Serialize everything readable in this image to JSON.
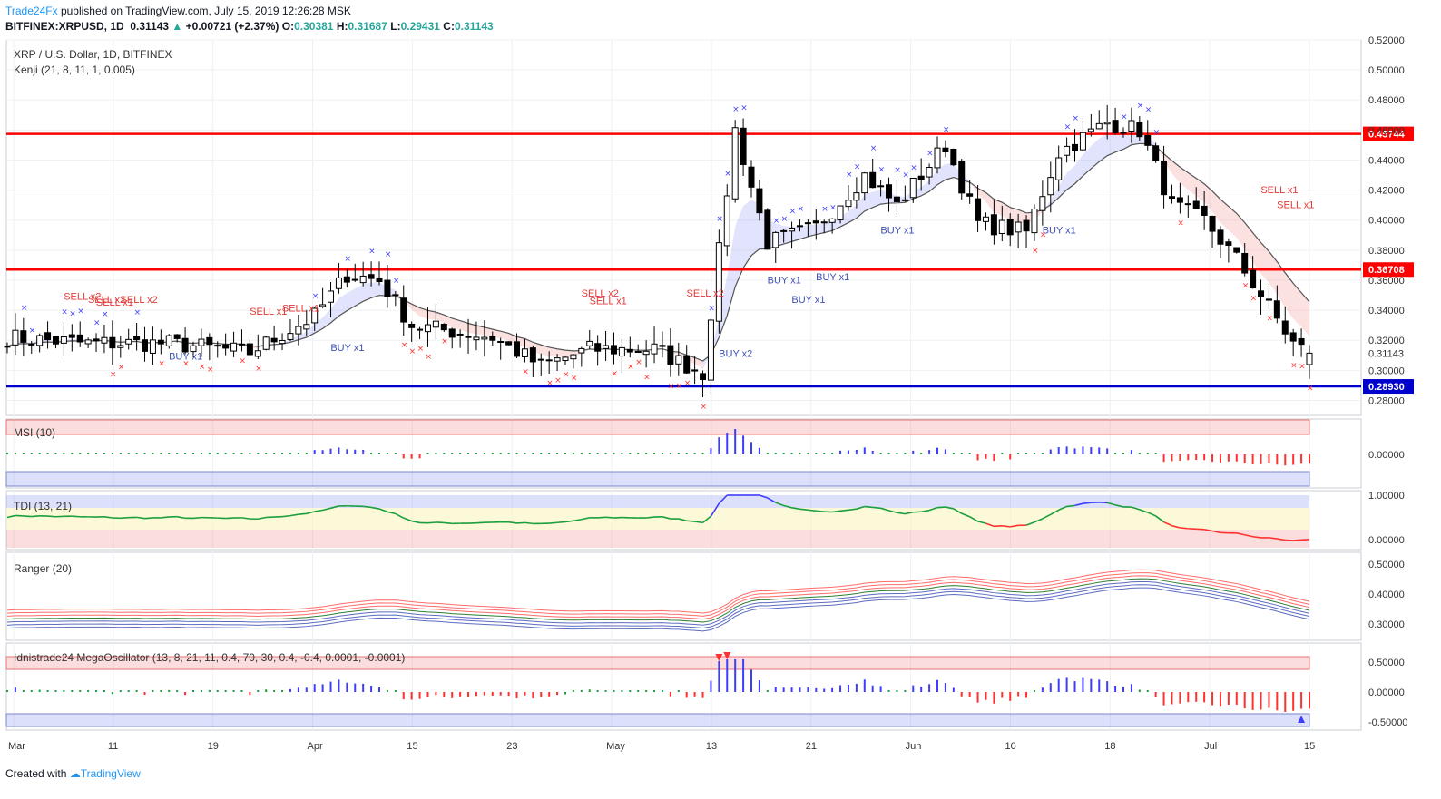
{
  "header": {
    "publisher": "Trade24Fx",
    "published_text": "published on TradingView.com, July 15, 2019 12:26:28 MSK",
    "symbol_line": "BITFINEX:XRPUSD, 1D",
    "last": "0.31143",
    "change": "+0.00721 (+2.37%)",
    "open_label": "O:",
    "open": "0.30381",
    "high_label": "H:",
    "high": "0.31687",
    "low_label": "L:",
    "low": "0.29431",
    "close_label": "C:",
    "close": "0.31143"
  },
  "main_pane": {
    "title": "XRP / U.S. Dollar, 1D, BITFINEX",
    "indicator": "Kenji (21, 8, 11, 1, 0.005)"
  },
  "colors": {
    "up": "#26a69a",
    "red_line": "#ff0000",
    "blue_line": "#0000cc",
    "signal_blue": "#3f51b5",
    "signal_red": "#e53935",
    "grid": "#eef0f3"
  },
  "chart_data": {
    "type": "candlestick",
    "x_labels": [
      "Mar",
      "11",
      "19",
      "Apr",
      "15",
      "23",
      "May",
      "13",
      "21",
      "Jun",
      "10",
      "18",
      "Jul",
      "15"
    ],
    "y_range": [
      0.27,
      0.52
    ],
    "y_ticks": [
      "0.52000",
      "0.50000",
      "0.48000",
      "0.46000",
      "0.44000",
      "0.42000",
      "0.40000",
      "0.38000",
      "0.36000",
      "0.34000",
      "0.32000",
      "0.30000",
      "0.28000"
    ],
    "last_price_label": "0.31143",
    "horizontal_levels": [
      {
        "value": 0.45744,
        "label": "0.45744",
        "color": "red"
      },
      {
        "value": 0.36708,
        "label": "0.36708",
        "color": "red"
      },
      {
        "value": 0.2893,
        "label": "0.28930",
        "color": "blue"
      }
    ],
    "anchors": [
      [
        0,
        0.322
      ],
      [
        10,
        0.318
      ],
      [
        20,
        0.318
      ],
      [
        30,
        0.312
      ],
      [
        38,
        0.336
      ],
      [
        42,
        0.364
      ],
      [
        46,
        0.36
      ],
      [
        50,
        0.33
      ],
      [
        60,
        0.322
      ],
      [
        66,
        0.303
      ],
      [
        72,
        0.314
      ],
      [
        80,
        0.314
      ],
      [
        86,
        0.298
      ],
      [
        90,
        0.46
      ],
      [
        94,
        0.385
      ],
      [
        100,
        0.395
      ],
      [
        106,
        0.43
      ],
      [
        110,
        0.41
      ],
      [
        116,
        0.45
      ],
      [
        120,
        0.398
      ],
      [
        126,
        0.392
      ],
      [
        130,
        0.445
      ],
      [
        136,
        0.465
      ],
      [
        140,
        0.46
      ],
      [
        144,
        0.41
      ],
      [
        148,
        0.4
      ],
      [
        152,
        0.374
      ],
      [
        156,
        0.342
      ],
      [
        159,
        0.318
      ],
      [
        161,
        0.311
      ]
    ],
    "signals": [
      {
        "text": "SELL x2",
        "bar": 9,
        "price": 0.347,
        "side": "sell"
      },
      {
        "text": "SELL x2",
        "bar": 12,
        "price": 0.345,
        "side": "sell"
      },
      {
        "text": "SELL x1",
        "bar": 13,
        "price": 0.343,
        "side": "sell"
      },
      {
        "text": "SELL x2",
        "bar": 16,
        "price": 0.345,
        "side": "sell"
      },
      {
        "text": "BUY x1",
        "bar": 22,
        "price": 0.307,
        "side": "buy"
      },
      {
        "text": "SELL x1",
        "bar": 32,
        "price": 0.337,
        "side": "sell"
      },
      {
        "text": "SELL x1",
        "bar": 36,
        "price": 0.339,
        "side": "sell"
      },
      {
        "text": "BUY x1",
        "bar": 42,
        "price": 0.313,
        "side": "buy"
      },
      {
        "text": "SELL x2",
        "bar": 73,
        "price": 0.349,
        "side": "sell"
      },
      {
        "text": "SELL x1",
        "bar": 74,
        "price": 0.344,
        "side": "sell"
      },
      {
        "text": "SELL x2",
        "bar": 86,
        "price": 0.349,
        "side": "sell"
      },
      {
        "text": "BUY x2",
        "bar": 90,
        "price": 0.309,
        "side": "buy"
      },
      {
        "text": "BUY x1",
        "bar": 96,
        "price": 0.358,
        "side": "buy"
      },
      {
        "text": "BUY x1",
        "bar": 99,
        "price": 0.345,
        "side": "buy"
      },
      {
        "text": "BUY x1",
        "bar": 102,
        "price": 0.36,
        "side": "buy"
      },
      {
        "text": "BUY x1",
        "bar": 110,
        "price": 0.391,
        "side": "buy"
      },
      {
        "text": "BUY x1",
        "bar": 130,
        "price": 0.391,
        "side": "buy"
      },
      {
        "text": "SELL x1",
        "bar": 157,
        "price": 0.418,
        "side": "sell"
      },
      {
        "text": "SELL x1",
        "bar": 159,
        "price": 0.408,
        "side": "sell"
      }
    ],
    "panes": [
      {
        "title": "MSI (10)",
        "ticks": [
          "0.00000"
        ]
      },
      {
        "title": "TDI (13, 21)",
        "ticks": [
          "1.00000",
          "0.00000"
        ]
      },
      {
        "title": "Ranger (20)",
        "ticks": [
          "0.50000",
          "0.40000",
          "0.30000"
        ]
      },
      {
        "title": "Idnistrade24 MegaOscillator (13, 8, 21, 11, 0.4, 70, 30, 0.4, -0.4, 0.0001, -0.0001)",
        "ticks": [
          "0.50000",
          "0.00000",
          "-0.50000"
        ]
      }
    ]
  },
  "footer": {
    "created_with": "Created with",
    "brand": "TradingView"
  }
}
